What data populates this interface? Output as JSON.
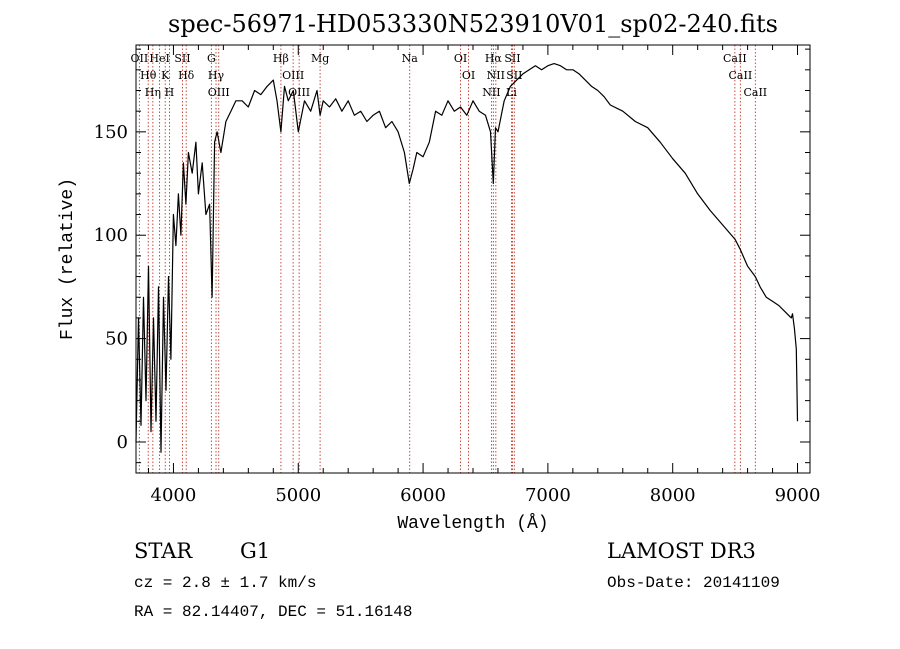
{
  "chart_data": {
    "type": "line",
    "title": "spec-56971-HD053330N523910V01_sp02-240.fits",
    "xlabel": "Wavelength (Å)",
    "ylabel": "Flux (relative)",
    "xlim": [
      3700,
      9100
    ],
    "ylim": [
      -15,
      192
    ],
    "xticks": [
      4000,
      5000,
      6000,
      7000,
      8000,
      9000
    ],
    "yticks": [
      0,
      50,
      100,
      150
    ],
    "grid": false,
    "series": [
      {
        "name": "flux",
        "x": [
          3700,
          3720,
          3740,
          3760,
          3780,
          3800,
          3820,
          3840,
          3860,
          3880,
          3900,
          3920,
          3940,
          3960,
          3980,
          4000,
          4020,
          4040,
          4060,
          4080,
          4100,
          4120,
          4150,
          4180,
          4200,
          4230,
          4260,
          4290,
          4310,
          4330,
          4350,
          4380,
          4420,
          4460,
          4500,
          4550,
          4600,
          4650,
          4700,
          4750,
          4800,
          4830,
          4861,
          4890,
          4920,
          4960,
          5000,
          5050,
          5100,
          5150,
          5175,
          5200,
          5250,
          5300,
          5350,
          5400,
          5450,
          5500,
          5550,
          5600,
          5650,
          5700,
          5750,
          5800,
          5850,
          5890,
          5920,
          5950,
          6000,
          6050,
          6100,
          6150,
          6200,
          6250,
          6300,
          6350,
          6400,
          6450,
          6500,
          6540,
          6563,
          6580,
          6600,
          6650,
          6700,
          6750,
          6800,
          6850,
          6900,
          6950,
          7000,
          7050,
          7100,
          7150,
          7200,
          7250,
          7300,
          7350,
          7400,
          7450,
          7500,
          7600,
          7700,
          7800,
          7900,
          8000,
          8100,
          8200,
          8300,
          8400,
          8500,
          8542,
          8600,
          8662,
          8700,
          8750,
          8800,
          8850,
          8900,
          8950,
          8960,
          8975,
          8990,
          9000
        ],
        "values": [
          0,
          60,
          8,
          70,
          20,
          85,
          5,
          60,
          10,
          75,
          -5,
          70,
          25,
          80,
          40,
          110,
          95,
          120,
          100,
          135,
          115,
          140,
          130,
          145,
          120,
          135,
          110,
          115,
          70,
          145,
          150,
          140,
          155,
          160,
          165,
          165,
          162,
          170,
          168,
          172,
          175,
          165,
          150,
          172,
          165,
          170,
          150,
          165,
          160,
          170,
          158,
          165,
          162,
          166,
          160,
          165,
          158,
          160,
          155,
          158,
          160,
          152,
          155,
          150,
          140,
          125,
          132,
          140,
          138,
          145,
          160,
          158,
          165,
          160,
          162,
          158,
          165,
          160,
          158,
          150,
          125,
          152,
          150,
          165,
          172,
          175,
          178,
          180,
          182,
          180,
          182,
          183,
          182,
          180,
          180,
          178,
          175,
          172,
          170,
          167,
          163,
          160,
          155,
          152,
          145,
          137,
          130,
          120,
          112,
          105,
          98,
          93,
          85,
          80,
          75,
          70,
          68,
          66,
          63,
          60,
          62,
          55,
          45,
          10
        ]
      }
    ],
    "lines": [
      {
        "label": "OII",
        "wl": 3727
      },
      {
        "label": "Hθ",
        "wl": 3798
      },
      {
        "label": "Hη",
        "wl": 3835
      },
      {
        "label": "HeI",
        "wl": 3889
      },
      {
        "label": "K",
        "wl": 3934
      },
      {
        "label": "H",
        "wl": 3968
      },
      {
        "label": "SII",
        "wl": 4072
      },
      {
        "label": "Hδ",
        "wl": 4102
      },
      {
        "label": "G",
        "wl": 4304
      },
      {
        "label": "Hγ",
        "wl": 4341
      },
      {
        "label": "OIII",
        "wl": 4363
      },
      {
        "label": "Hβ",
        "wl": 4861
      },
      {
        "label": "OIII",
        "wl": 4959
      },
      {
        "label": "OIII",
        "wl": 5007
      },
      {
        "label": "Mg",
        "wl": 5175
      },
      {
        "label": "Na",
        "wl": 5893
      },
      {
        "label": "OI",
        "wl": 6300
      },
      {
        "label": "OI",
        "wl": 6364
      },
      {
        "label": "NII",
        "wl": 6548
      },
      {
        "label": "Hα",
        "wl": 6563
      },
      {
        "label": "NII",
        "wl": 6583
      },
      {
        "label": "Li",
        "wl": 6708
      },
      {
        "label": "SII",
        "wl": 6716
      },
      {
        "label": "SII",
        "wl": 6731
      },
      {
        "label": "CaII",
        "wl": 8498
      },
      {
        "label": "CaII",
        "wl": 8542
      },
      {
        "label": "CaII",
        "wl": 8662
      }
    ]
  },
  "info": {
    "class": "STAR",
    "subclass": "G1",
    "survey": "LAMOST DR3",
    "cz": "cz = 2.8 ± 1.7 km/s",
    "obsdate": "Obs-Date: 20141109",
    "radec": "RA =  82.14407, DEC =  51.16148"
  },
  "colors": {
    "line_marker": "#c0392b",
    "spectrum": "#000000"
  }
}
